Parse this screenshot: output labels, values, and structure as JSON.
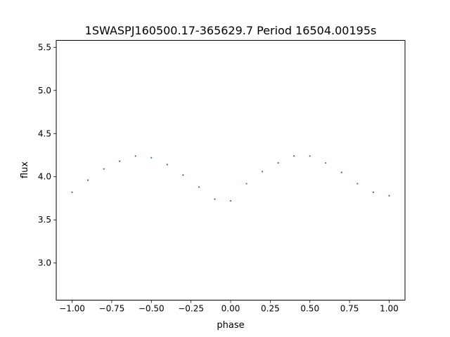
{
  "chart_data": {
    "type": "scatter",
    "title": "1SWASPJ160500.17-365629.7 Period 16504.00195s",
    "xlabel": "phase",
    "ylabel": "flux",
    "xlim": [
      -1.1,
      1.1
    ],
    "ylim": [
      2.57,
      5.58
    ],
    "x_ticks": [
      -1.0,
      -0.75,
      -0.5,
      -0.25,
      0.0,
      0.25,
      0.5,
      0.75,
      1.0
    ],
    "x_tick_labels": [
      "−1.00",
      "−0.75",
      "−0.50",
      "−0.25",
      "0.00",
      "0.25",
      "0.50",
      "0.75",
      "1.00"
    ],
    "y_ticks": [
      3.0,
      3.5,
      4.0,
      4.5,
      5.0,
      5.5
    ],
    "y_tick_labels": [
      "3.0",
      "3.5",
      "4.0",
      "4.5",
      "5.0",
      "5.5"
    ],
    "grid": false,
    "legend": "none",
    "marker_color": "#1f77b4",
    "series": [
      {
        "x": [
          -1.0,
          -0.9,
          -0.8,
          -0.7,
          -0.6,
          -0.5,
          -0.4,
          -0.3,
          -0.2,
          -0.1,
          0.0,
          0.1,
          0.2,
          0.3,
          0.4,
          0.5,
          0.6,
          0.7,
          0.8,
          0.9,
          1.0
        ],
        "y": [
          3.82,
          3.96,
          4.09,
          4.18,
          4.24,
          4.22,
          4.14,
          4.02,
          3.88,
          3.74,
          3.72,
          3.92,
          4.06,
          4.16,
          4.24,
          4.24,
          4.16,
          4.05,
          3.92,
          3.82,
          3.78
        ]
      }
    ]
  }
}
